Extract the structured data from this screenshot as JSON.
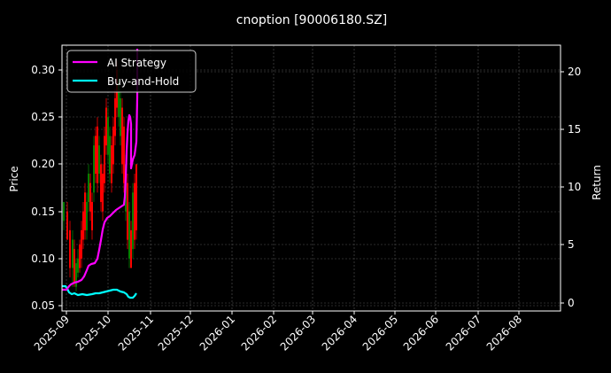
{
  "chart_data": {
    "type": "line",
    "title": "cnoption [90006180.SZ]",
    "xlabel": "",
    "ylabel": "Price",
    "ylabel_right": "Return",
    "ylim": [
      0.045,
      0.325
    ],
    "ylim_right": [
      -0.5,
      22
    ],
    "grid": true,
    "legend_position": "upper left",
    "x_ticks": [
      "2025-09",
      "2025-10",
      "2025-11",
      "2025-12",
      "2026-01",
      "2026-02",
      "2026-03",
      "2026-04",
      "2026-05",
      "2026-06",
      "2026-07",
      "2026-08"
    ],
    "y_ticks": [
      "0.05",
      "0.10",
      "0.15",
      "0.20",
      "0.25",
      "0.30"
    ],
    "y_ticks_right": [
      "0",
      "5",
      "10",
      "15",
      "20"
    ],
    "legend": [
      "AI Strategy",
      "Buy-and-Hold"
    ],
    "series": [
      {
        "name": "AI Strategy",
        "axis": "right",
        "color": "#ff00ff",
        "x": [
          "2025-09-01",
          "2025-09-05",
          "2025-09-10",
          "2025-09-15",
          "2025-09-20",
          "2025-09-25",
          "2025-09-28",
          "2025-10-01",
          "2025-10-05",
          "2025-10-10",
          "2025-10-14",
          "2025-10-16",
          "2025-10-18",
          "2025-10-20",
          "2025-10-22"
        ],
        "values": [
          1.0,
          1.0,
          1.6,
          2.0,
          2.8,
          3.5,
          5.2,
          6.5,
          7.2,
          8.2,
          8.8,
          13.5,
          10.5,
          11.5,
          20.5
        ]
      },
      {
        "name": "Buy-and-Hold",
        "axis": "right",
        "color": "#00ffff",
        "x": [
          "2025-09-01",
          "2025-09-03",
          "2025-09-06",
          "2025-09-10",
          "2025-09-15",
          "2025-09-20",
          "2025-09-25",
          "2025-10-01",
          "2025-10-06",
          "2025-10-10",
          "2025-10-15",
          "2025-10-18",
          "2025-10-21"
        ],
        "values": [
          1.3,
          1.2,
          0.6,
          0.55,
          0.5,
          0.55,
          0.6,
          0.85,
          1.05,
          0.85,
          0.2,
          0.35,
          0.7
        ]
      },
      {
        "name": "Price (candlesticks)",
        "axis": "left",
        "up_color": "#008000",
        "down_color": "#ff0000",
        "note": "Daily OHLC bars from ~2025-09-01 to ~2025-10-22, price range ≈0.06–0.31"
      }
    ]
  },
  "candles": [
    [
      72,
      0.16,
      0.14,
      0.16,
      0.13,
      "up"
    ],
    [
      76,
      0.15,
      0.12,
      0.16,
      0.12,
      "down"
    ],
    [
      79,
      0.13,
      0.09,
      0.14,
      0.08,
      "down"
    ],
    [
      82,
      0.12,
      0.09,
      0.13,
      0.07,
      "up"
    ],
    [
      84,
      0.11,
      0.075,
      0.12,
      0.07,
      "down"
    ],
    [
      86,
      0.095,
      0.07,
      0.1,
      0.065,
      "up"
    ],
    [
      88,
      0.1,
      0.085,
      0.11,
      0.08,
      "up"
    ],
    [
      90,
      0.115,
      0.09,
      0.12,
      0.085,
      "down"
    ],
    [
      92,
      0.13,
      0.1,
      0.14,
      0.09,
      "down"
    ],
    [
      94,
      0.15,
      0.12,
      0.16,
      0.11,
      "down"
    ],
    [
      96,
      0.17,
      0.13,
      0.18,
      0.12,
      "down"
    ],
    [
      98,
      0.16,
      0.13,
      0.17,
      0.12,
      "up"
    ],
    [
      100,
      0.19,
      0.16,
      0.2,
      0.15,
      "up"
    ],
    [
      102,
      0.18,
      0.15,
      0.19,
      0.14,
      "down"
    ],
    [
      104,
      0.16,
      0.13,
      0.17,
      0.12,
      "down"
    ],
    [
      106,
      0.22,
      0.17,
      0.23,
      0.16,
      "up"
    ],
    [
      108,
      0.23,
      0.19,
      0.24,
      0.18,
      "down"
    ],
    [
      110,
      0.24,
      0.18,
      0.25,
      0.17,
      "down"
    ],
    [
      112,
      0.22,
      0.19,
      0.23,
      0.18,
      "up"
    ],
    [
      114,
      0.2,
      0.16,
      0.21,
      0.15,
      "down"
    ],
    [
      116,
      0.19,
      0.15,
      0.2,
      0.14,
      "down"
    ],
    [
      118,
      0.23,
      0.18,
      0.24,
      0.17,
      "down"
    ],
    [
      120,
      0.26,
      0.22,
      0.27,
      0.21,
      "down"
    ],
    [
      122,
      0.25,
      0.21,
      0.26,
      0.2,
      "up"
    ],
    [
      124,
      0.23,
      0.19,
      0.24,
      0.18,
      "up"
    ],
    [
      126,
      0.22,
      0.18,
      0.23,
      0.17,
      "down"
    ],
    [
      128,
      0.24,
      0.2,
      0.25,
      0.19,
      "down"
    ],
    [
      130,
      0.27,
      0.23,
      0.28,
      0.22,
      "down"
    ],
    [
      132,
      0.3,
      0.26,
      0.31,
      0.25,
      "down"
    ],
    [
      134,
      0.29,
      0.25,
      0.3,
      0.24,
      "up"
    ],
    [
      136,
      0.27,
      0.23,
      0.28,
      0.22,
      "up"
    ],
    [
      138,
      0.26,
      0.2,
      0.27,
      0.19,
      "down"
    ],
    [
      140,
      0.24,
      0.18,
      0.25,
      0.17,
      "down"
    ],
    [
      142,
      0.2,
      0.15,
      0.21,
      0.14,
      "up"
    ],
    [
      144,
      0.18,
      0.12,
      0.19,
      0.11,
      "down"
    ],
    [
      146,
      0.15,
      0.1,
      0.16,
      0.09,
      "up"
    ],
    [
      148,
      0.13,
      0.09,
      0.14,
      0.09,
      "down"
    ],
    [
      150,
      0.17,
      0.11,
      0.18,
      0.1,
      "up"
    ],
    [
      152,
      0.18,
      0.12,
      0.19,
      0.11,
      "down"
    ],
    [
      154,
      0.2,
      0.13,
      0.2,
      0.12,
      "down"
    ]
  ]
}
